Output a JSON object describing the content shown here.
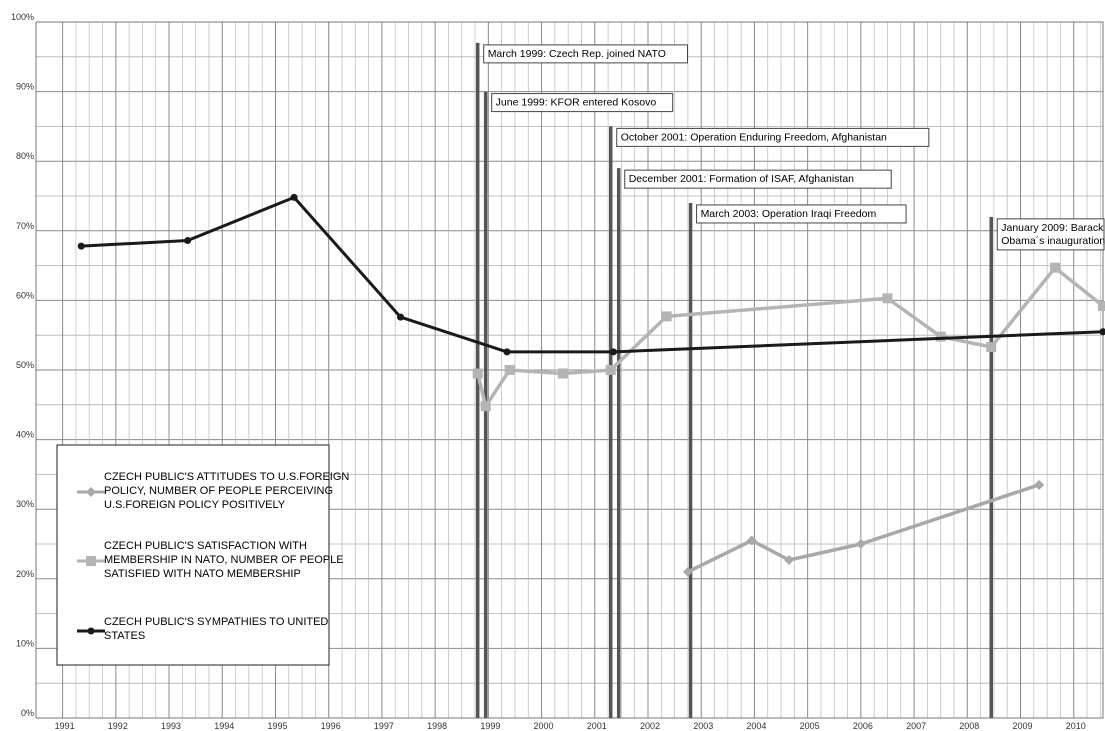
{
  "chart_data": {
    "type": "line",
    "title": "",
    "xlabel": "",
    "ylabel": "",
    "xlim": [
      1990.5,
      2010.55
    ],
    "ylim": [
      0,
      100
    ],
    "x_ticks": [
      "1991",
      "1992",
      "1993",
      "1994",
      "1995",
      "1996",
      "1997",
      "1998",
      "1999",
      "2000",
      "2001",
      "2002",
      "2003",
      "2004",
      "2005",
      "2006",
      "2007",
      "2008",
      "2009",
      "2010"
    ],
    "y_ticks": [
      "0%",
      "10%",
      "20%",
      "30%",
      "40%",
      "50%",
      "60%",
      "70%",
      "80%",
      "90%",
      "100%"
    ],
    "grid": true,
    "legend_position": "bottom-left",
    "series": [
      {
        "name": "CZECH PUBLIC'S ATTITUDES TO U.S.FOREIGN POLICY, NUMBER OF PEOPLE PERCEIVING U.S.FOREIGN POLICY POSITIVELY",
        "legend_lines": [
          "CZECH PUBLIC'S ATTITUDES TO U.S.FOREIGN",
          "POLICY, NUMBER OF PEOPLE PERCEIVING",
          "U.S.FOREIGN POLICY POSITIVELY"
        ],
        "color": "#a8a8a8",
        "marker": "diamond",
        "x": [
          2002.75,
          2003.95,
          2004.65,
          2006.0,
          2009.35
        ],
        "y": [
          21,
          25.5,
          22.7,
          25,
          33.5
        ]
      },
      {
        "name": "CZECH PUBLIC'S SATISFACTION WITH MEMBERSHIP IN NATO, NUMBER OF PEOPLE SATISFIED WITH NATO MEMBERSHIP",
        "legend_lines": [
          "CZECH PUBLIC'S SATISFACTION WITH",
          "MEMBERSHIP IN NATO, NUMBER OF PEOPLE",
          "SATISFIED WITH NATO MEMBERSHIP"
        ],
        "color": "#b4b4b4",
        "marker": "square",
        "x": [
          1998.8,
          1998.95,
          1999.4,
          2000.4,
          2001.3,
          2002.35,
          2006.5,
          2007.5,
          2008.45,
          2009.65,
          2010.55
        ],
        "y": [
          49.5,
          44.8,
          50,
          49.5,
          50,
          57.7,
          60.3,
          54.8,
          53.3,
          64.7,
          59.2
        ]
      },
      {
        "name": "CZECH PUBLIC'S SYMPATHIES TO UNITED STATES",
        "legend_lines": [
          "CZECH PUBLIC'S SYMPATHIES TO UNITED",
          "STATES"
        ],
        "color": "#1a1a1a",
        "marker": "circle",
        "x": [
          1991.35,
          1993.35,
          1995.35,
          1997.35,
          1999.35,
          2001.35,
          2010.55
        ],
        "y": [
          67.8,
          68.6,
          74.8,
          57.6,
          52.6,
          52.6,
          55.5
        ]
      }
    ],
    "annotations": [
      {
        "x": 1998.8,
        "top": 97,
        "lines": [
          "March 1999: Czech Rep. joined NATO"
        ]
      },
      {
        "x": 1998.95,
        "top": 90,
        "lines": [
          "June 1999: KFOR entered Kosovo"
        ]
      },
      {
        "x": 2001.3,
        "top": 85,
        "lines": [
          "October 2001: Operation Enduring Freedom, Afghanistan"
        ]
      },
      {
        "x": 2001.45,
        "top": 79,
        "lines": [
          "December 2001: Formation of ISAF, Afghanistan"
        ]
      },
      {
        "x": 2002.8,
        "top": 74,
        "lines": [
          "March 2003: Operation Iraqi Freedom"
        ]
      },
      {
        "x": 2008.45,
        "top": 72,
        "lines": [
          "January 2009: Barack",
          "Obama´s inauguration"
        ]
      }
    ]
  }
}
